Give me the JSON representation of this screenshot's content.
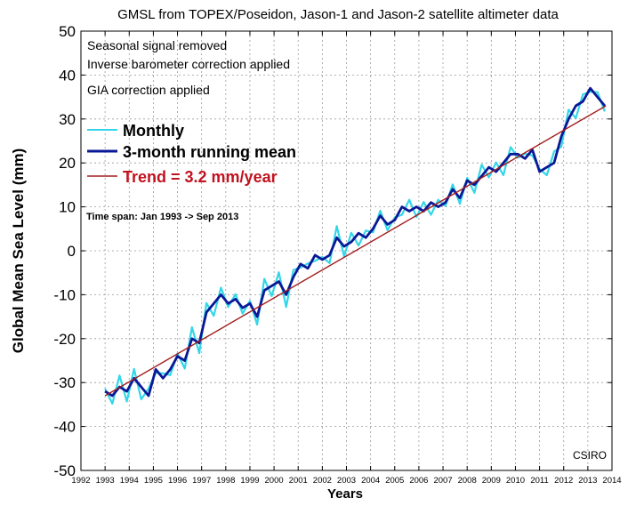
{
  "chart_data": {
    "type": "line",
    "title": "GMSL from TOPEX/Poseidon, Jason-1 and Jason-2 satellite altimeter data",
    "xlabel": "Years",
    "ylabel": "Global Mean Sea Level (mm)",
    "xlim": [
      1992,
      2014
    ],
    "ylim": [
      -50,
      50
    ],
    "grid": true,
    "xticks": [
      "1992",
      "1993",
      "1994",
      "1995",
      "1996",
      "1997",
      "1998",
      "1999",
      "2000",
      "2001",
      "2002",
      "2003",
      "2004",
      "2005",
      "2006",
      "2007",
      "2008",
      "2009",
      "2010",
      "2011",
      "2012",
      "2013",
      "2014"
    ],
    "yticks": [
      "50",
      "40",
      "30",
      "20",
      "10",
      "0",
      "-10",
      "-20",
      "-30",
      "-40",
      "-50"
    ],
    "annotations": {
      "note1": "Seasonal signal removed",
      "note2": "Inverse barometer correction applied",
      "note3": "GIA correction applied",
      "timespan": "Time span: Jan 1993 -> Sep 2013",
      "source": "CSIRO"
    },
    "legend": {
      "placement": "top-left",
      "monthly": "Monthly",
      "running": "3-month running mean",
      "trend": "Trend = 3.2 mm/year"
    },
    "colors": {
      "monthly": "#33d6e8",
      "running": "#0a1896",
      "trend": "#a21e1e",
      "trend_text": "#c1121f"
    },
    "series": [
      {
        "name": "3-month running mean",
        "x": [
          1993.0,
          1993.3,
          1993.6,
          1993.9,
          1994.2,
          1994.5,
          1994.8,
          1995.1,
          1995.4,
          1995.7,
          1996.0,
          1996.3,
          1996.6,
          1996.9,
          1997.2,
          1997.5,
          1997.8,
          1998.1,
          1998.4,
          1998.7,
          1999.0,
          1999.3,
          1999.6,
          1999.9,
          2000.2,
          2000.5,
          2000.8,
          2001.1,
          2001.4,
          2001.7,
          2002.0,
          2002.3,
          2002.6,
          2002.9,
          2003.2,
          2003.5,
          2003.8,
          2004.1,
          2004.4,
          2004.7,
          2005.0,
          2005.3,
          2005.6,
          2005.9,
          2006.2,
          2006.5,
          2006.8,
          2007.1,
          2007.4,
          2007.7,
          2008.0,
          2008.3,
          2008.6,
          2008.9,
          2009.2,
          2009.5,
          2009.8,
          2010.1,
          2010.4,
          2010.7,
          2011.0,
          2011.3,
          2011.6,
          2011.9,
          2012.2,
          2012.5,
          2012.8,
          2013.1,
          2013.4,
          2013.7
        ],
        "y": [
          -32,
          -33,
          -31,
          -32,
          -29,
          -31,
          -33,
          -27,
          -29,
          -27,
          -24,
          -25,
          -20,
          -21,
          -14,
          -12,
          -10,
          -12,
          -11,
          -13,
          -12,
          -15,
          -9,
          -8,
          -7,
          -10,
          -6,
          -3,
          -4,
          -1,
          -2,
          -1,
          3,
          1,
          2,
          4,
          3,
          5,
          8,
          6,
          7,
          10,
          9,
          10,
          9,
          11,
          10,
          11,
          14,
          12,
          16,
          15,
          17,
          19,
          18,
          20,
          22,
          22,
          21,
          23,
          18,
          19,
          20,
          26,
          30,
          33,
          34,
          37,
          35,
          33
        ]
      },
      {
        "name": "Trend = 3.2 mm/year",
        "x": [
          1993.0,
          2013.75
        ],
        "y": [
          -33.0,
          33.0
        ]
      }
    ]
  }
}
